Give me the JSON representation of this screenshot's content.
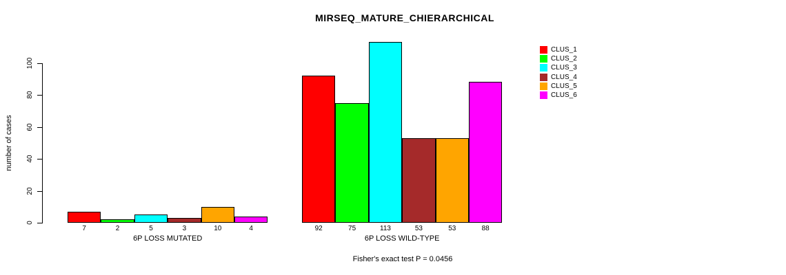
{
  "title": "MIRSEQ_MATURE_CHIERARCHICAL",
  "footer": "Fisher's exact test P = 0.0456",
  "chart_data": {
    "type": "bar",
    "title": "MIRSEQ_MATURE_CHIERARCHICAL",
    "ylabel": "number of cases",
    "xlabel": "",
    "yticks": [
      0,
      20,
      40,
      60,
      80,
      100
    ],
    "ylim": [
      0,
      115
    ],
    "grid": false,
    "legend_position": "right",
    "categories": [
      "6P LOSS MUTATED",
      "6P LOSS WILD-TYPE"
    ],
    "series": [
      {
        "name": "CLUS_1",
        "color": "#FF0000",
        "values": [
          7,
          92
        ]
      },
      {
        "name": "CLUS_2",
        "color": "#00FF00",
        "values": [
          2,
          75
        ]
      },
      {
        "name": "CLUS_3",
        "color": "#00FFFF",
        "values": [
          5,
          113
        ]
      },
      {
        "name": "CLUS_4",
        "color": "#A52A2A",
        "values": [
          3,
          53
        ]
      },
      {
        "name": "CLUS_5",
        "color": "#FFA500",
        "values": [
          10,
          53
        ]
      },
      {
        "name": "CLUS_6",
        "color": "#FF00FF",
        "values": [
          4,
          88
        ]
      }
    ],
    "bar_value_labels": [
      [
        7,
        2,
        5,
        3,
        10,
        4
      ],
      [
        92,
        75,
        113,
        53,
        53,
        88
      ]
    ],
    "annotation": "Fisher's exact test P = 0.0456"
  }
}
